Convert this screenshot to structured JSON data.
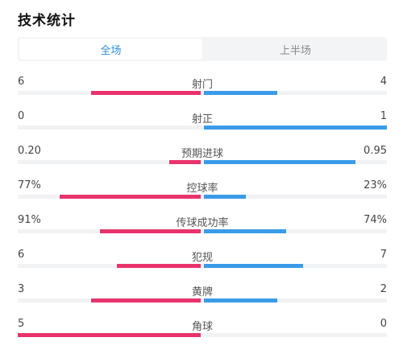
{
  "title": "技术统计",
  "tabs": [
    {
      "label": "全场",
      "active": true
    },
    {
      "label": "上半场",
      "active": false
    }
  ],
  "colors": {
    "home": "#e8336d",
    "away": "#3a9be8",
    "tab_active": "#2f8fe0"
  },
  "stats": [
    {
      "label": "射门",
      "home": "6",
      "away": "4",
      "home_frac": 0.6,
      "away_frac": 0.4
    },
    {
      "label": "射正",
      "home": "0",
      "away": "1",
      "home_frac": 0.0,
      "away_frac": 1.0
    },
    {
      "label": "预期进球",
      "home": "0.20",
      "away": "0.95",
      "home_frac": 0.17,
      "away_frac": 0.83
    },
    {
      "label": "控球率",
      "home": "77%",
      "away": "23%",
      "home_frac": 0.77,
      "away_frac": 0.23
    },
    {
      "label": "传球成功率",
      "home": "91%",
      "away": "74%",
      "home_frac": 0.55,
      "away_frac": 0.45
    },
    {
      "label": "犯规",
      "home": "6",
      "away": "7",
      "home_frac": 0.46,
      "away_frac": 0.54
    },
    {
      "label": "黄牌",
      "home": "3",
      "away": "2",
      "home_frac": 0.6,
      "away_frac": 0.4
    },
    {
      "label": "角球",
      "home": "5",
      "away": "0",
      "home_frac": 1.0,
      "away_frac": 0.0
    }
  ]
}
